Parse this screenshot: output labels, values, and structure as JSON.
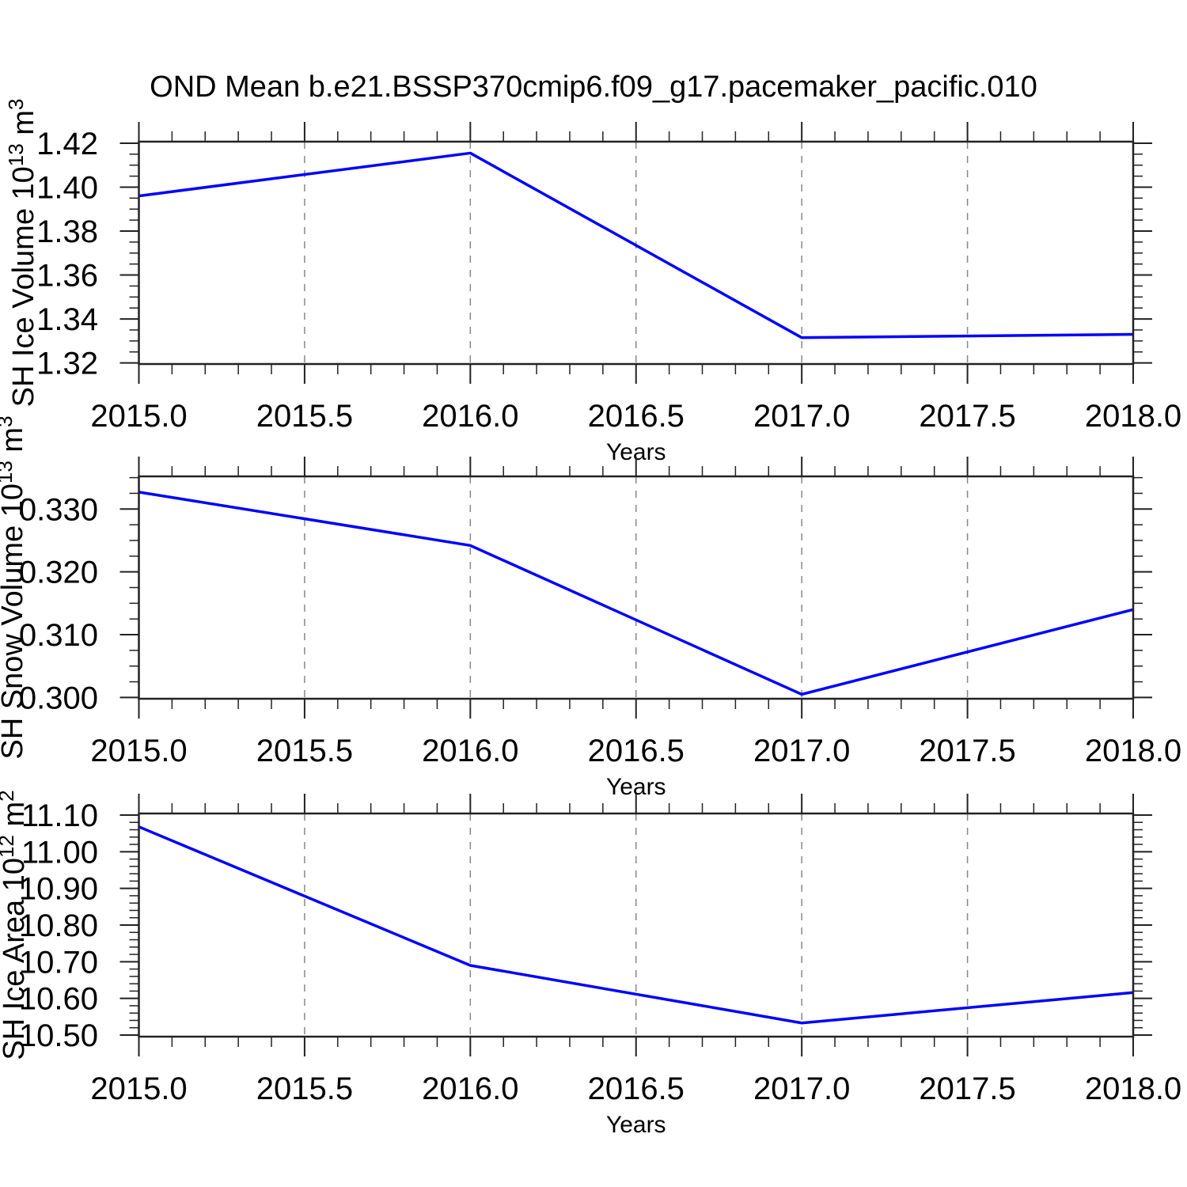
{
  "title": "OND Mean b.e21.BSSP370cmip6.f09_g17.pacemaker_pacific.010",
  "x_axis": {
    "label": "Years",
    "ticks": [
      "2015.0",
      "2015.5",
      "2016.0",
      "2016.5",
      "2017.0",
      "2017.5",
      "2018.0"
    ],
    "range": [
      2015.0,
      2018.0
    ],
    "major_step": 0.5,
    "minor_step": 0.1,
    "gridlines_x": [
      2015.5,
      2016.0,
      2016.5,
      2017.0,
      2017.5
    ]
  },
  "style": {
    "line_color": "#0000ff",
    "grid_color": "#888888",
    "axis_color": "#222222",
    "background": "#ffffff"
  },
  "chart_data": [
    {
      "type": "line",
      "name": "sh-ice-volume",
      "ylabel": "SH Ice Volume 10^13 m^3",
      "ylabel_parts": [
        {
          "t": "SH Ice Volume 10",
          "sup": false
        },
        {
          "t": "13",
          "sup": true
        },
        {
          "t": " m",
          "sup": false
        },
        {
          "t": "3",
          "sup": true
        }
      ],
      "x": [
        2015.0,
        2016.0,
        2017.0,
        2018.0
      ],
      "values": [
        1.396,
        1.4155,
        1.3315,
        1.333
      ],
      "ylim": [
        1.3195,
        1.4207
      ],
      "yticks": [
        "1.42",
        "1.40",
        "1.38",
        "1.36",
        "1.34",
        "1.32"
      ],
      "y_minor_step": 0.005,
      "xlabel": "Years"
    },
    {
      "type": "line",
      "name": "sh-snow-volume",
      "ylabel": "SH Snow Volume 10^13 m^3",
      "ylabel_parts": [
        {
          "t": "SH Snow Volume 10",
          "sup": false
        },
        {
          "t": "13",
          "sup": true
        },
        {
          "t": " m",
          "sup": false
        },
        {
          "t": "3",
          "sup": true
        }
      ],
      "x": [
        2015.0,
        2016.0,
        2017.0,
        2018.0
      ],
      "values": [
        0.3327,
        0.3242,
        0.3005,
        0.314
      ],
      "ylim": [
        0.2998,
        0.3352
      ],
      "yticks": [
        "0.330",
        "0.320",
        "0.310",
        "0.300"
      ],
      "y_minor_step": 0.0025,
      "xlabel": "Years"
    },
    {
      "type": "line",
      "name": "sh-ice-area",
      "ylabel": "SH Ice Area 10^12 m^2",
      "ylabel_parts": [
        {
          "t": "SH Ice Area 10",
          "sup": false
        },
        {
          "t": "12",
          "sup": true
        },
        {
          "t": " m",
          "sup": false
        },
        {
          "t": "2",
          "sup": true
        }
      ],
      "x": [
        2015.0,
        2016.0,
        2017.0,
        2018.0
      ],
      "values": [
        11.068,
        10.69,
        10.533,
        10.616
      ],
      "ylim": [
        10.4957,
        11.1043
      ],
      "yticks": [
        "11.10",
        "11.00",
        "10.90",
        "10.80",
        "10.70",
        "10.60",
        "10.50"
      ],
      "y_minor_step": 0.02,
      "xlabel": "Years"
    }
  ]
}
